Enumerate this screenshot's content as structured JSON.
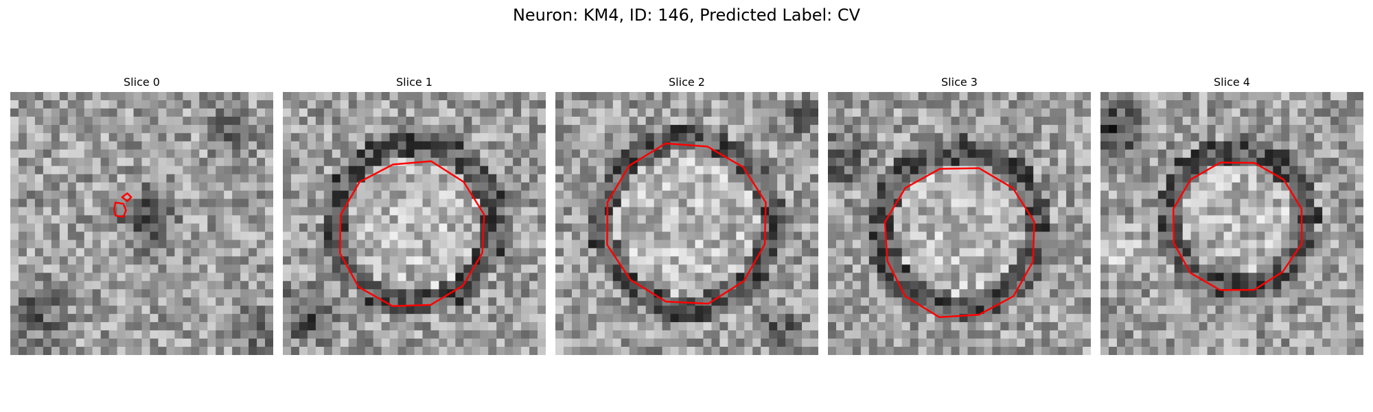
{
  "figure": {
    "title": "Neuron: KM4, ID: 146, Predicted Label: CV"
  },
  "panels": [
    {
      "title": "Slice 0"
    },
    {
      "title": "Slice 1"
    },
    {
      "title": "Slice 2"
    },
    {
      "title": "Slice 3"
    },
    {
      "title": "Slice 4"
    }
  ],
  "colors": {
    "contour": "#ff0000",
    "background": "#ffffff"
  }
}
